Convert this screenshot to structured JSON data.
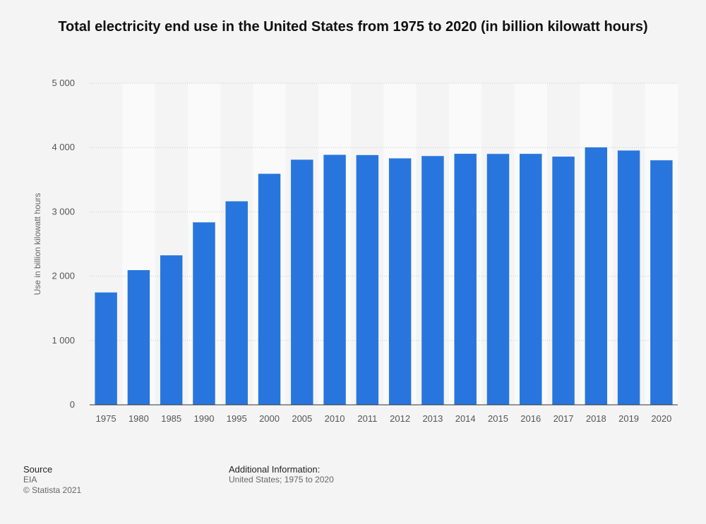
{
  "chart_data": {
    "type": "bar",
    "title": "Total electricity end use in the United States from 1975 to 2020 (in billion kilowatt hours)",
    "xlabel": "",
    "ylabel": "Use in billion kilowatt hours",
    "categories": [
      "1975",
      "1980",
      "1985",
      "1990",
      "1995",
      "2000",
      "2005",
      "2010",
      "2011",
      "2012",
      "2013",
      "2014",
      "2015",
      "2016",
      "2017",
      "2018",
      "2019",
      "2020"
    ],
    "values": [
      1747,
      2094,
      2324,
      2837,
      3164,
      3592,
      3811,
      3887,
      3883,
      3832,
      3868,
      3903,
      3901,
      3902,
      3859,
      4003,
      3954,
      3802
    ],
    "yticks": [
      0,
      1000,
      2000,
      3000,
      4000,
      5000
    ],
    "ytick_labels": [
      "0",
      "1 000",
      "2 000",
      "3 000",
      "4 000",
      "5 000"
    ],
    "ylim": [
      0,
      5000
    ],
    "bar_color": "#2876dd",
    "grid": true,
    "legend": false
  },
  "footer": {
    "source_label": "Source",
    "source_value": "EIA",
    "copyright": "© Statista 2021",
    "additional_label": "Additional Information:",
    "additional_value": "United States; 1975 to 2020"
  }
}
